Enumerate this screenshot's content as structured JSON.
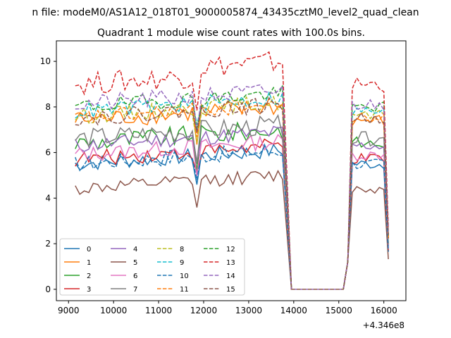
{
  "figure": {
    "suptitle": "n file: modeM0/AS1A12_018T01_9000005874_43435cztM0_level2_quad_clean",
    "offset_label": "+4.346e8"
  },
  "chart_data": {
    "type": "line",
    "title": "Quadrant 1 module wise count rates with 100.0s bins.",
    "xlabel": "",
    "ylabel": "",
    "xlim": [
      8730,
      16490
    ],
    "ylim": [
      -0.5,
      10.9
    ],
    "x_offset_label": "+4.346e8",
    "x_ticks": [
      9000,
      10000,
      11000,
      12000,
      13000,
      14000,
      15000,
      16000
    ],
    "y_ticks": [
      0,
      2,
      4,
      6,
      8,
      10
    ],
    "grid": false,
    "legend": {
      "placement": "lower-left",
      "columns": 4
    },
    "colors": [
      "#1f77b4",
      "#ff7f0e",
      "#2ca02c",
      "#d62728",
      "#9467bd",
      "#8c564b",
      "#e377c2",
      "#7f7f7f",
      "#bcbd22",
      "#17becf"
    ],
    "series": [
      {
        "name": "0",
        "style": "solid",
        "color": "#1f77b4",
        "base": 5.5,
        "noise": 0.35
      },
      {
        "name": "1",
        "style": "solid",
        "color": "#ff7f0e",
        "base": 7.4,
        "noise": 0.4
      },
      {
        "name": "2",
        "style": "solid",
        "color": "#2ca02c",
        "base": 6.4,
        "noise": 0.45
      },
      {
        "name": "3",
        "style": "solid",
        "color": "#d62728",
        "base": 5.7,
        "noise": 0.35
      },
      {
        "name": "4",
        "style": "solid",
        "color": "#9467bd",
        "base": 6.3,
        "noise": 0.35
      },
      {
        "name": "5",
        "style": "solid",
        "color": "#8c564b",
        "base": 4.4,
        "noise": 0.3
      },
      {
        "name": "6",
        "style": "solid",
        "color": "#e377c2",
        "base": 5.9,
        "noise": 0.35
      },
      {
        "name": "7",
        "style": "solid",
        "color": "#7f7f7f",
        "base": 6.6,
        "noise": 0.45
      },
      {
        "name": "8",
        "style": "dashed",
        "color": "#bcbd22",
        "base": 7.6,
        "noise": 0.35
      },
      {
        "name": "9",
        "style": "dashed",
        "color": "#17becf",
        "base": 7.8,
        "noise": 0.35
      },
      {
        "name": "10",
        "style": "dashed",
        "color": "#1f77b4",
        "base": 5.5,
        "noise": 0.35
      },
      {
        "name": "11",
        "style": "dashed",
        "color": "#ff7f0e",
        "base": 7.5,
        "noise": 0.35
      },
      {
        "name": "12",
        "style": "dashed",
        "color": "#2ca02c",
        "base": 8.0,
        "noise": 0.35
      },
      {
        "name": "13",
        "style": "dashed",
        "color": "#d62728",
        "base": 9.0,
        "noise": 0.5
      },
      {
        "name": "14",
        "style": "dashed",
        "color": "#9467bd",
        "base": 8.1,
        "noise": 0.4
      },
      {
        "name": "15",
        "style": "dashed",
        "color": "#8c564b",
        "base": 7.5,
        "noise": 0.35
      }
    ],
    "segments": [
      {
        "x_start": 9150,
        "x_end": 13750,
        "dip_at": 11850
      },
      {
        "x_start": 13750,
        "x_end": 13900,
        "note": "drop"
      },
      {
        "x_start": 13950,
        "x_end": 15200,
        "value": 0
      },
      {
        "x_start": 15200,
        "x_end": 16150
      }
    ]
  }
}
